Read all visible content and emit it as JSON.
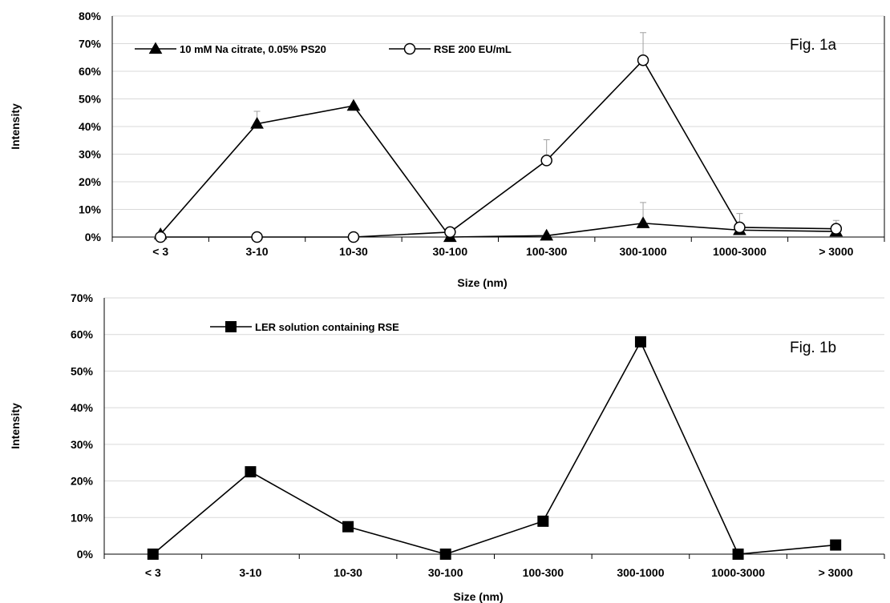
{
  "chart_data": [
    {
      "type": "line",
      "annotation": "Fig. 1a",
      "xlabel": "Size (nm)",
      "ylabel": "Intensity",
      "categories": [
        "< 3",
        "3-10",
        "10-30",
        "30-100",
        "100-300",
        "300-1000",
        "1000-3000",
        "> 3000"
      ],
      "ylim": [
        0,
        0.8
      ],
      "yticks": [
        0,
        0.1,
        0.2,
        0.3,
        0.4,
        0.5,
        0.6,
        0.7,
        0.8
      ],
      "ytick_labels": [
        "0%",
        "10%",
        "20%",
        "30%",
        "40%",
        "50%",
        "60%",
        "70%",
        "80%"
      ],
      "grid": true,
      "legend_position": "top-left",
      "series": [
        {
          "name": "10 mM Na citrate, 0.05% PS20",
          "marker": "triangle-filled",
          "values": [
            0.01,
            0.41,
            0.475,
            0.0,
            0.005,
            0.05,
            0.025,
            0.02
          ],
          "error_upper": [
            null,
            0.045,
            null,
            null,
            null,
            0.075,
            null,
            null
          ]
        },
        {
          "name": "RSE 200 EU/mL",
          "marker": "circle-open",
          "values": [
            0.0,
            0.0,
            0.0,
            0.018,
            0.277,
            0.64,
            0.035,
            0.03
          ],
          "error_upper": [
            null,
            null,
            null,
            null,
            0.075,
            0.1,
            0.05,
            0.03
          ]
        }
      ]
    },
    {
      "type": "line",
      "annotation": "Fig. 1b",
      "xlabel": "Size (nm)",
      "ylabel": "Intensity",
      "categories": [
        "< 3",
        "3-10",
        "10-30",
        "30-100",
        "100-300",
        "300-1000",
        "1000-3000",
        "> 3000"
      ],
      "ylim": [
        0,
        0.7
      ],
      "yticks": [
        0,
        0.1,
        0.2,
        0.3,
        0.4,
        0.5,
        0.6,
        0.7
      ],
      "ytick_labels": [
        "0%",
        "10%",
        "20%",
        "30%",
        "40%",
        "50%",
        "60%",
        "70%"
      ],
      "grid": true,
      "legend_position": "top-left",
      "series": [
        {
          "name": "LER solution containing RSE",
          "marker": "square-filled",
          "values": [
            0.0,
            0.225,
            0.075,
            0.0,
            0.09,
            0.58,
            0.0,
            0.025
          ]
        }
      ]
    }
  ]
}
